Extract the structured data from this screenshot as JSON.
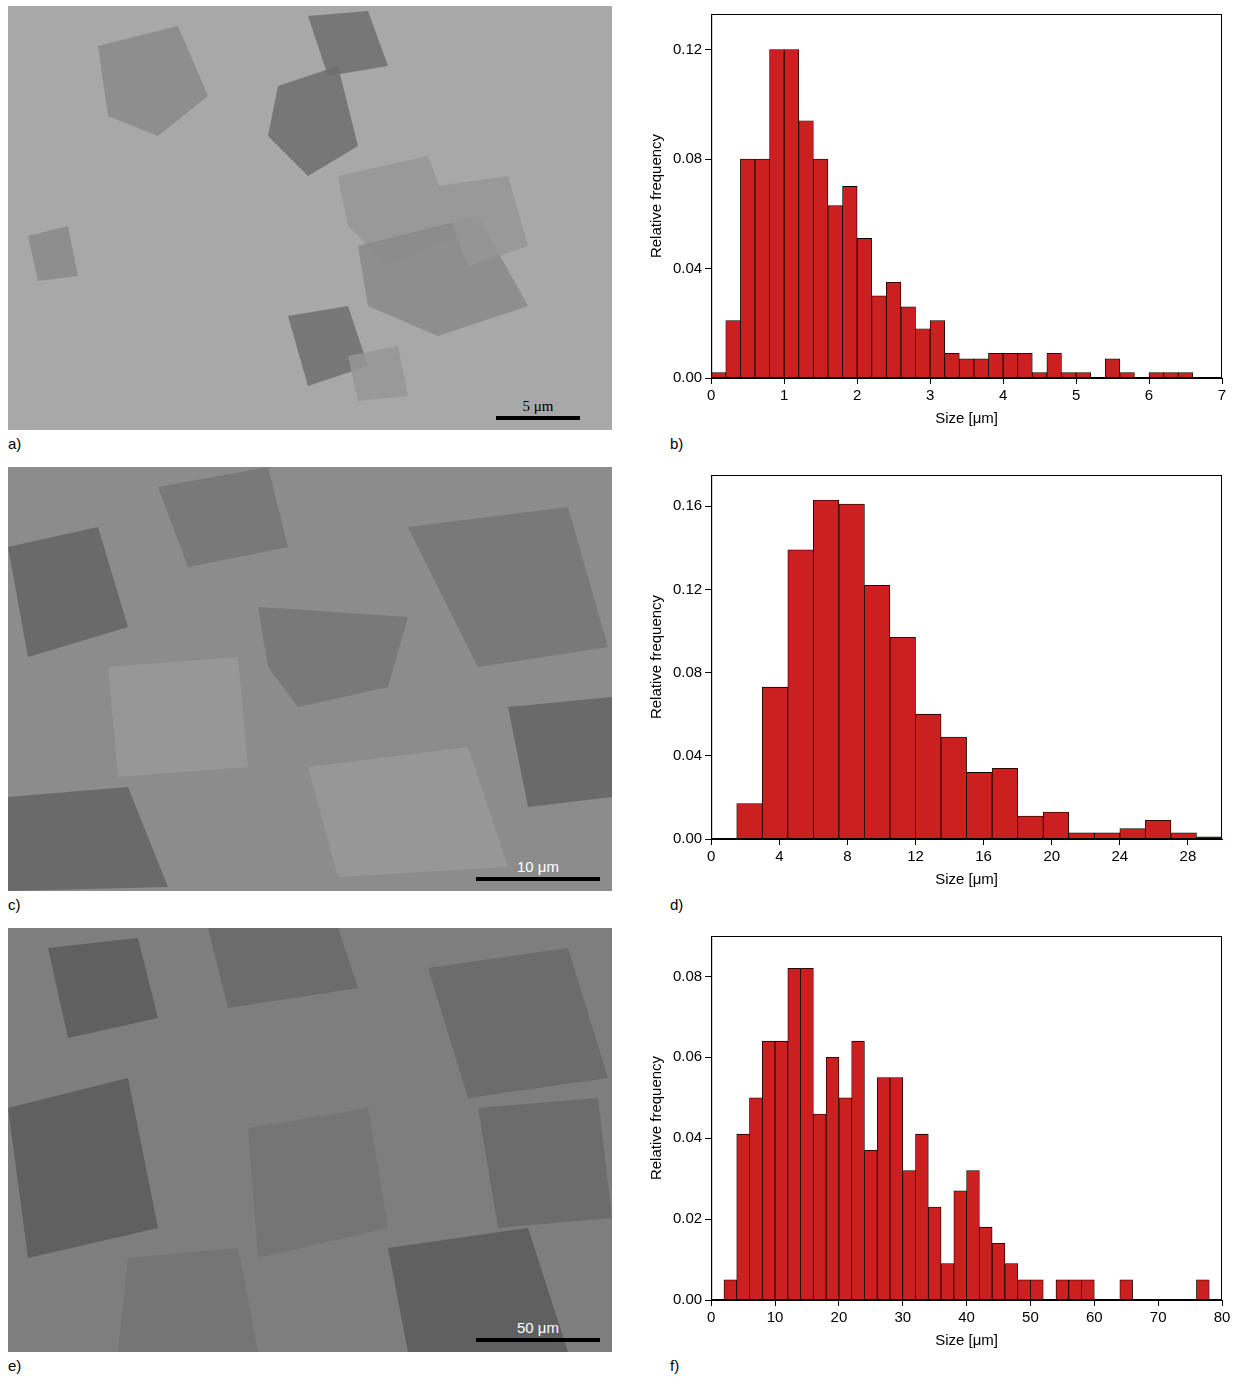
{
  "images": [
    {
      "panel": "a)",
      "scale_bar": "5 μm"
    },
    {
      "panel": "c)",
      "scale_bar": "10 μm"
    },
    {
      "panel": "e)",
      "scale_bar": "50 μm"
    }
  ],
  "chart_data": [
    {
      "type": "histogram",
      "panel": "b)",
      "xlabel": "Size [μm]",
      "ylabel": "Relative frequency",
      "color": "#cc1f1f",
      "grid": false,
      "bins": [
        0,
        0.2,
        0.4,
        0.6,
        0.8,
        1,
        1.2,
        1.4,
        1.6,
        1.8,
        2,
        2.2,
        2.4,
        2.6,
        2.8,
        3,
        3.2,
        3.4,
        3.6,
        3.8,
        4,
        4.2,
        4.4,
        4.6,
        4.8,
        5,
        5.2,
        5.4,
        5.6,
        5.8,
        6,
        6.2,
        6.4,
        6.6
      ],
      "values": [
        0.002,
        0.021,
        0.08,
        0.08,
        0.12,
        0.12,
        0.094,
        0.08,
        0.063,
        0.07,
        0.051,
        0.03,
        0.035,
        0.026,
        0.018,
        0.021,
        0.009,
        0.007,
        0.007,
        0.009,
        0.009,
        0.009,
        0.002,
        0.009,
        0.002,
        0.002,
        0,
        0.007,
        0.002,
        0,
        0.002,
        0.002,
        0.002
      ],
      "xlim": [
        0,
        7
      ],
      "xticks": [
        0,
        1,
        2,
        3,
        4,
        5,
        6,
        7
      ],
      "ylim": [
        0,
        0.133
      ],
      "yticks": [
        {
          "value": 0,
          "label": "0.00"
        },
        {
          "value": 0.04,
          "label": "0.04"
        },
        {
          "value": 0.08,
          "label": "0.08"
        },
        {
          "value": 0.12,
          "label": "0.12"
        }
      ]
    },
    {
      "type": "histogram",
      "panel": "d)",
      "xlabel": "Size [μm]",
      "ylabel": "Relative frequency",
      "color": "#cc1f1f",
      "grid": false,
      "bins": [
        1.5,
        3,
        4.5,
        6,
        7.5,
        9,
        10.5,
        12,
        13.5,
        15,
        16.5,
        18,
        19.5,
        21,
        22.5,
        24,
        25.5,
        27,
        28.5,
        30
      ],
      "values": [
        0.017,
        0.073,
        0.139,
        0.163,
        0.161,
        0.122,
        0.097,
        0.06,
        0.049,
        0.032,
        0.034,
        0.011,
        0.013,
        0.003,
        0.003,
        0.005,
        0.009,
        0.003,
        0.001
      ],
      "xlim": [
        0,
        30
      ],
      "xticks": [
        0,
        4,
        8,
        12,
        16,
        20,
        24,
        28
      ],
      "ylim": [
        0,
        0.175
      ],
      "yticks": [
        {
          "value": 0,
          "label": "0.00"
        },
        {
          "value": 0.04,
          "label": "0.04"
        },
        {
          "value": 0.08,
          "label": "0.08"
        },
        {
          "value": 0.12,
          "label": "0.12"
        },
        {
          "value": 0.16,
          "label": "0.16"
        }
      ]
    },
    {
      "type": "histogram",
      "panel": "f)",
      "xlabel": "Size [μm]",
      "ylabel": "Relative frequency",
      "color": "#cc1f1f",
      "grid": false,
      "bins": [
        2,
        4,
        6,
        8,
        10,
        12,
        14,
        16,
        18,
        20,
        22,
        24,
        26,
        28,
        30,
        32,
        34,
        36,
        38,
        40,
        42,
        44,
        46,
        48,
        50,
        52,
        54,
        56,
        58,
        60,
        62,
        64,
        66,
        68,
        70,
        72,
        74,
        76,
        78
      ],
      "values": [
        0.005,
        0.041,
        0.05,
        0.064,
        0.064,
        0.082,
        0.082,
        0.046,
        0.06,
        0.05,
        0.064,
        0.037,
        0.055,
        0.055,
        0.032,
        0.041,
        0.023,
        0.009,
        0.027,
        0.032,
        0.018,
        0.014,
        0.009,
        0.005,
        0.005,
        0,
        0.005,
        0.005,
        0.005,
        0,
        0,
        0.005,
        0,
        0,
        0,
        0,
        0,
        0.005
      ],
      "xlim": [
        0,
        80
      ],
      "xticks": [
        0,
        10,
        20,
        30,
        40,
        50,
        60,
        70,
        80
      ],
      "ylim": [
        0,
        0.09
      ],
      "yticks": [
        {
          "value": 0,
          "label": "0.00"
        },
        {
          "value": 0.02,
          "label": "0.02"
        },
        {
          "value": 0.04,
          "label": "0.04"
        },
        {
          "value": 0.06,
          "label": "0.06"
        },
        {
          "value": 0.08,
          "label": "0.08"
        }
      ]
    }
  ]
}
